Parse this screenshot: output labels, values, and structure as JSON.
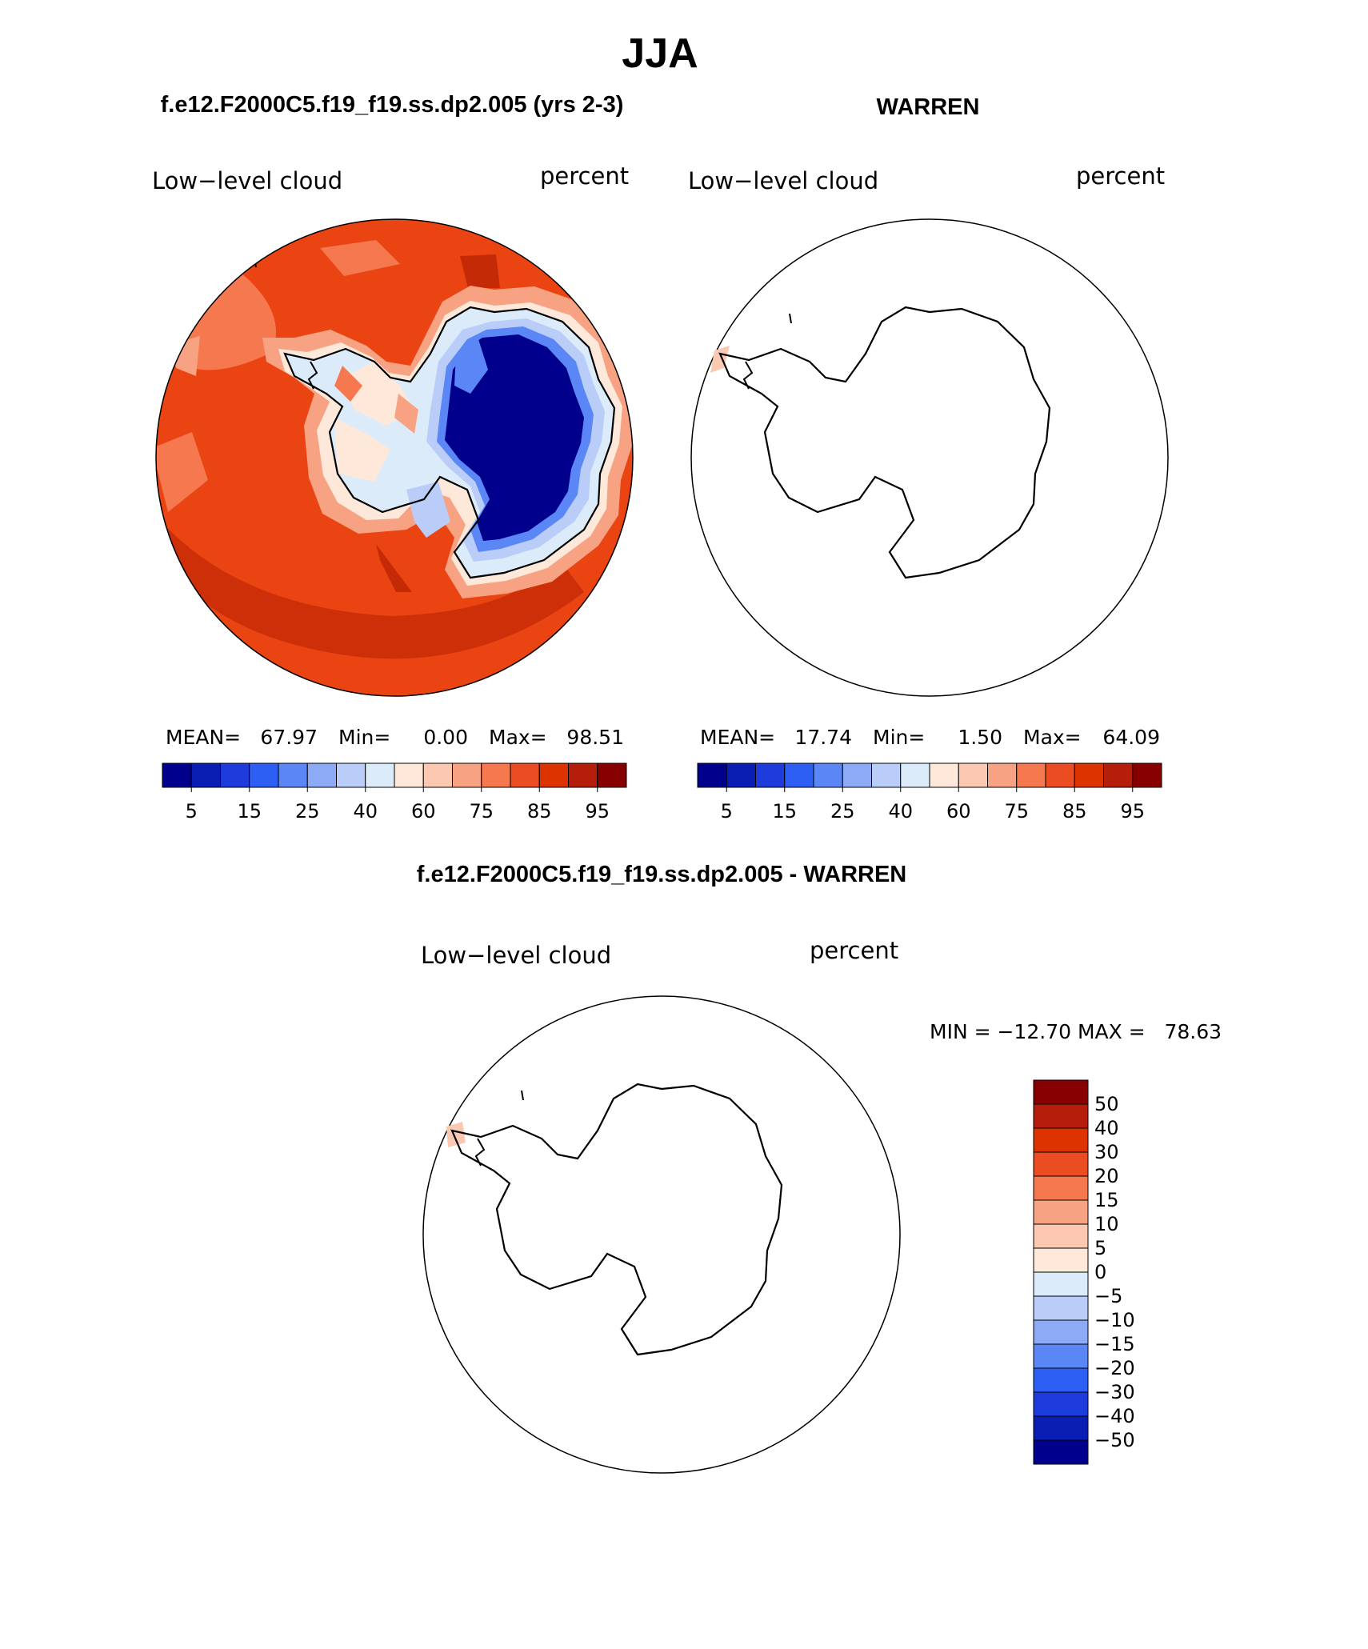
{
  "page": {
    "title": "JJA",
    "left_heading": "f.e12.F2000C5.f19_f19.ss.dp2.005 (yrs 2-3)",
    "right_heading": "WARREN",
    "diff_heading": "f.e12.F2000C5.f19_f19.ss.dp2.005 - WARREN"
  },
  "panels": {
    "model": {
      "variable": "Low−level cloud",
      "units": "percent",
      "stats": {
        "mean_label": "MEAN=",
        "mean": "67.97",
        "min_label": "Min=",
        "min": "0.00",
        "max_label": "Max=",
        "max": "98.51"
      }
    },
    "obs": {
      "variable": "Low−level cloud",
      "units": "percent",
      "stats": {
        "mean_label": "MEAN=",
        "mean": "17.74",
        "min_label": "Min=",
        "min": "1.50",
        "max_label": "Max=",
        "max": "64.09"
      }
    },
    "diff": {
      "variable": "Low−level cloud",
      "units": "percent",
      "minmax": "MIN = −12.70 MAX =   78.63"
    }
  },
  "colorbar_h": {
    "labels": [
      "5",
      "15",
      "25",
      "40",
      "60",
      "75",
      "85",
      "95"
    ],
    "colors": [
      "#00008c",
      "#0a1eb4",
      "#1e3cdc",
      "#2d5ff5",
      "#5a87f5",
      "#8caaf5",
      "#b9cdf8",
      "#dcebfa",
      "#fde8da",
      "#fbc9b1",
      "#f7a383",
      "#f5784f",
      "#ec4c22",
      "#dc3300",
      "#b41e0a",
      "#870000"
    ]
  },
  "colorbar_v": {
    "labels": [
      "50",
      "40",
      "30",
      "20",
      "15",
      "10",
      "5",
      "0",
      "−5",
      "−10",
      "−15",
      "−20",
      "−30",
      "−40",
      "−50"
    ],
    "colors_top_to_bottom": [
      "#870000",
      "#b41e0a",
      "#dc3300",
      "#ec4c22",
      "#f5784f",
      "#f7a383",
      "#fbc9b1",
      "#fde8da",
      "#dcebfa",
      "#b9cdf8",
      "#8caaf5",
      "#5a87f5",
      "#2d5ff5",
      "#1e3cdc",
      "#0a1eb4",
      "#00008c"
    ]
  },
  "map_colors": {
    "ocean_base": "#ea4412",
    "ocean_dark": "#c52a06",
    "ocean_light": "#f5784f",
    "coast_light": "#f7a383",
    "coast_pale": "#fde8da",
    "ice_pale": "#dcebfa",
    "ice_light": "#b9cdf8",
    "ice_mid": "#5a87f5",
    "plateau": "#00008c",
    "anomaly_patch": "#fbc9b1"
  }
}
